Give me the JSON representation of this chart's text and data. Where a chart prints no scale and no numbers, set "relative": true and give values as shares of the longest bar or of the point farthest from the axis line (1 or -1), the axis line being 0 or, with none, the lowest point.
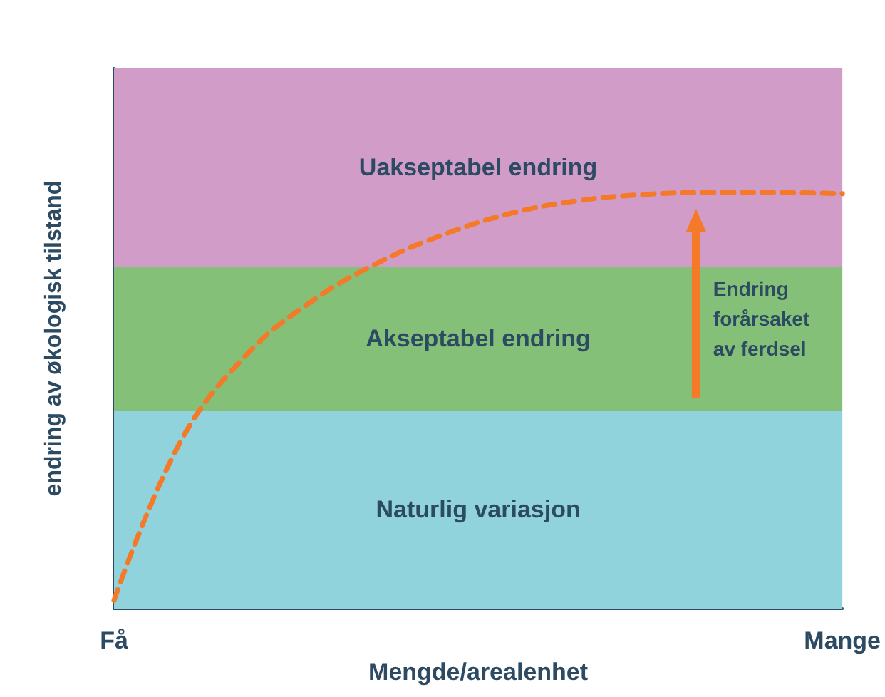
{
  "chart_data": {
    "type": "line",
    "relative": true,
    "xlabel": "Mengde/arealenhet",
    "ylabel": "endring av økologisk tilstand",
    "categories": [
      "Få",
      null,
      null,
      null,
      null,
      null,
      null,
      null,
      null,
      null,
      null,
      "Mange"
    ],
    "series": [
      {
        "color": "#f47a2a",
        "values": [
          0.02,
          0.4,
          0.61,
          0.74,
          0.832,
          0.9,
          0.95,
          0.98,
          0.995,
          1.0,
          1.0,
          0.997
        ]
      }
    ],
    "bands": [
      {
        "axis": "y",
        "from": 0,
        "to": 0.476,
        "label": "Naturlig variasjon",
        "color": "#90d3dc"
      },
      {
        "axis": "y",
        "from": 0.476,
        "to": 0.822,
        "label": "Akseptabel endring",
        "color": "#84c077"
      },
      {
        "axis": "y",
        "from": 0.822,
        "to": 1.298,
        "label": "Uakseptabel endring",
        "color": "#d29cc9"
      }
    ],
    "annotations": [
      "Endring\nforårsaket\nav ferdsel"
    ],
    "line_style": "dashed",
    "marker": "none"
  }
}
